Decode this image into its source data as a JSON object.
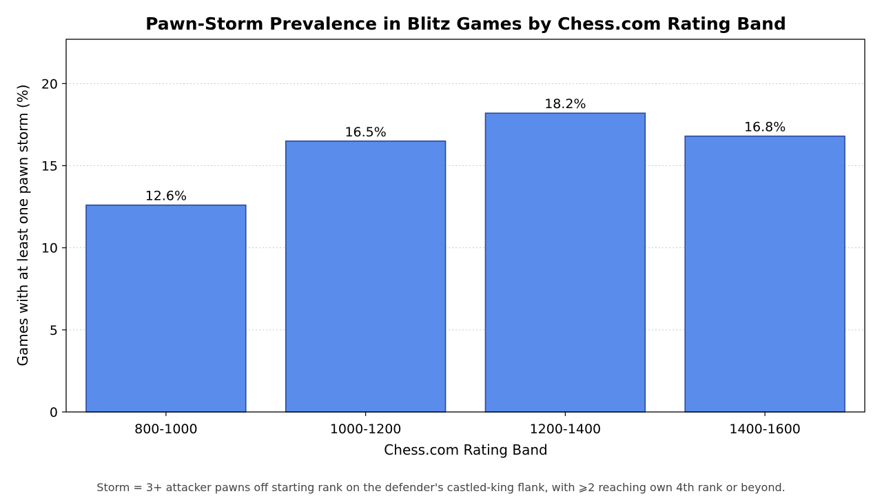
{
  "chart_data": {
    "type": "bar",
    "title": "Pawn-Storm Prevalence in Blitz Games by Chess.com Rating Band",
    "xlabel": "Chess.com Rating Band",
    "ylabel": "Games with at least one pawn storm (%)",
    "categories": [
      "800-1000",
      "1000-1200",
      "1200-1400",
      "1400-1600"
    ],
    "values": [
      12.6,
      16.5,
      18.2,
      16.8
    ],
    "data_labels": [
      "12.6%",
      "16.5%",
      "18.2%",
      "16.8%"
    ],
    "ylim": [
      0,
      22.7
    ],
    "yticks": [
      0,
      5,
      10,
      15,
      20
    ],
    "grid": "horizontal-dotted",
    "legend": "none",
    "bar_color": "#5a8cec",
    "bar_edge_color": "#2a4a9a",
    "footnote": "Storm = 3+ attacker pawns off starting rank on the defender's castled-king flank, with ⩾2 reaching own 4th rank or beyond."
  }
}
